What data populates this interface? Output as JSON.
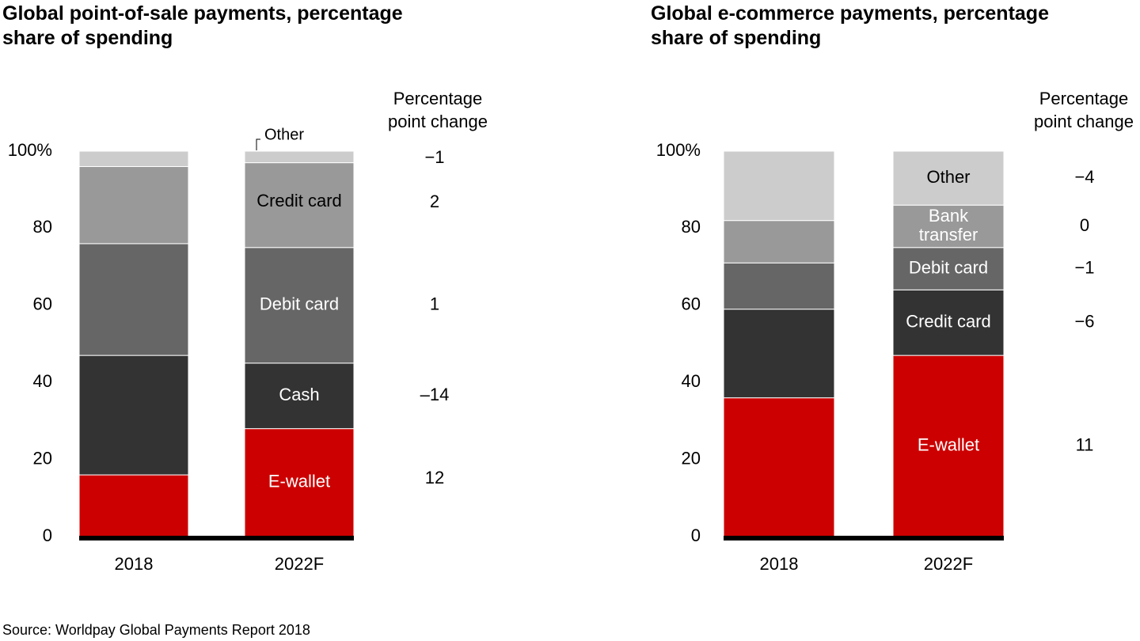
{
  "chart_data": [
    {
      "type": "bar",
      "stacked": true,
      "title": "Global point-of-sale payments, percentage share of spending",
      "categories": [
        "2018",
        "2022F"
      ],
      "yticks": [
        "100%",
        "80",
        "60",
        "40",
        "20",
        "0"
      ],
      "ylim": [
        0,
        100
      ],
      "change_header": [
        "Percentage",
        "point change"
      ],
      "series": [
        {
          "name": "E-wallet",
          "values": [
            16,
            28
          ],
          "change": "12",
          "label_in_bar": "E-wallet"
        },
        {
          "name": "Cash",
          "values": [
            31,
            17
          ],
          "change": "–14",
          "label_in_bar": "Cash"
        },
        {
          "name": "Debit card",
          "values": [
            29,
            30
          ],
          "change": "1",
          "label_in_bar": "Debit card"
        },
        {
          "name": "Credit card",
          "values": [
            20,
            22
          ],
          "change": "2",
          "label_in_bar": "Credit card"
        },
        {
          "name": "Other",
          "values": [
            4,
            3
          ],
          "change": "−1",
          "label_in_bar": "Other",
          "callout": true
        }
      ]
    },
    {
      "type": "bar",
      "stacked": true,
      "title": "Global e-commerce payments, percentage share of spending",
      "categories": [
        "2018",
        "2022F"
      ],
      "yticks": [
        "100%",
        "80",
        "60",
        "40",
        "20",
        "0"
      ],
      "ylim": [
        0,
        100
      ],
      "change_header": [
        "Percentage",
        "point change"
      ],
      "series": [
        {
          "name": "E-wallet",
          "values": [
            36,
            47
          ],
          "change": "11",
          "label_in_bar": "E-wallet"
        },
        {
          "name": "Credit card",
          "values": [
            23,
            17
          ],
          "change": "−6",
          "label_in_bar": "Credit card"
        },
        {
          "name": "Debit card",
          "values": [
            12,
            11
          ],
          "change": "−1",
          "label_in_bar": "Debit card"
        },
        {
          "name": "Bank transfer",
          "values": [
            11,
            11
          ],
          "change": "0",
          "label_in_bar": "Bank transfer"
        },
        {
          "name": "Other",
          "values": [
            18,
            14
          ],
          "change": "−4",
          "label_in_bar": "Other"
        }
      ]
    }
  ],
  "colors": {
    "E-wallet": "#cc0000",
    "Cash": "#333333",
    "Debit card": "#666666",
    "Credit card": "#999999",
    "Bank transfer": "#999999",
    "Other": "#cccccc",
    "ec_2018": [
      "#cc0000",
      "#333333",
      "#666666",
      "#999999",
      "#cccccc"
    ],
    "ec_2022": [
      "#cc0000",
      "#333333",
      "#666666",
      "#999999",
      "#cccccc"
    ]
  },
  "source": "Source: Worldpay Global Payments Report 2018"
}
